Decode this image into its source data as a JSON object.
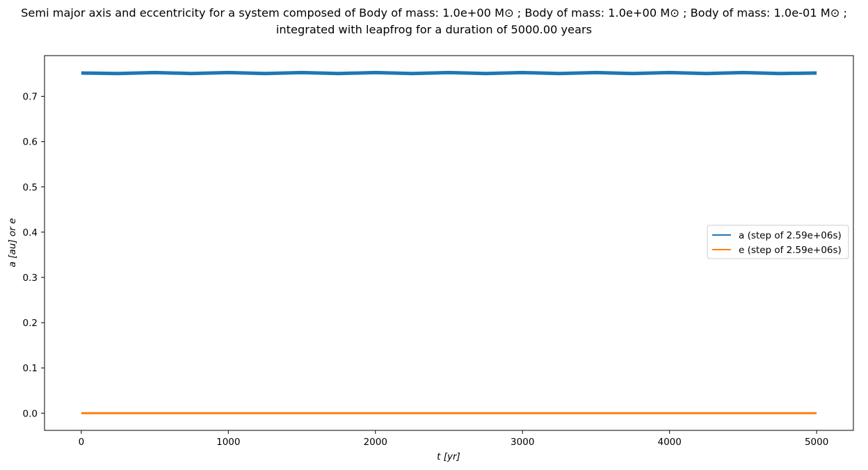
{
  "chart_data": {
    "type": "line",
    "title_line1": "Semi major axis and eccentricity for a system composed of Body of mass: 1.0e+00 M⊙ ; Body of mass: 1.0e+00 M⊙ ; Body of mass: 1.0e-01 M⊙ ;",
    "title_line2": "integrated with leapfrog for a duration of 5000.00 years",
    "xlabel": "t [yr]",
    "ylabel": "a [au] or e",
    "xlim": [
      -250,
      5250
    ],
    "ylim": [
      -0.038,
      0.79
    ],
    "xticks": [
      0,
      1000,
      2000,
      3000,
      4000,
      5000
    ],
    "xtick_labels": [
      "0",
      "1000",
      "2000",
      "3000",
      "4000",
      "5000"
    ],
    "yticks": [
      0.0,
      0.1,
      0.2,
      0.3,
      0.4,
      0.5,
      0.6,
      0.7
    ],
    "ytick_labels": [
      "0.0",
      "0.1",
      "0.2",
      "0.3",
      "0.4",
      "0.5",
      "0.6",
      "0.7"
    ],
    "grid": false,
    "legend_position": "center-right",
    "series": [
      {
        "name": "a (step of 2.59e+06s)",
        "color": "#1f77b4",
        "x": [
          0,
          250,
          500,
          750,
          1000,
          1250,
          1500,
          1750,
          2000,
          2250,
          2500,
          2750,
          3000,
          3250,
          3500,
          3750,
          4000,
          4250,
          4500,
          4750,
          5000
        ],
        "y": [
          0.7515,
          0.7505,
          0.7525,
          0.7505,
          0.7525,
          0.7505,
          0.7525,
          0.7505,
          0.7525,
          0.7505,
          0.7525,
          0.7505,
          0.7525,
          0.7505,
          0.7525,
          0.7505,
          0.7525,
          0.7505,
          0.7525,
          0.7505,
          0.7515
        ]
      },
      {
        "name": "e (step of 2.59e+06s)",
        "color": "#ff7f0e",
        "x": [
          0,
          5000
        ],
        "y": [
          0.0,
          0.0
        ]
      }
    ]
  }
}
